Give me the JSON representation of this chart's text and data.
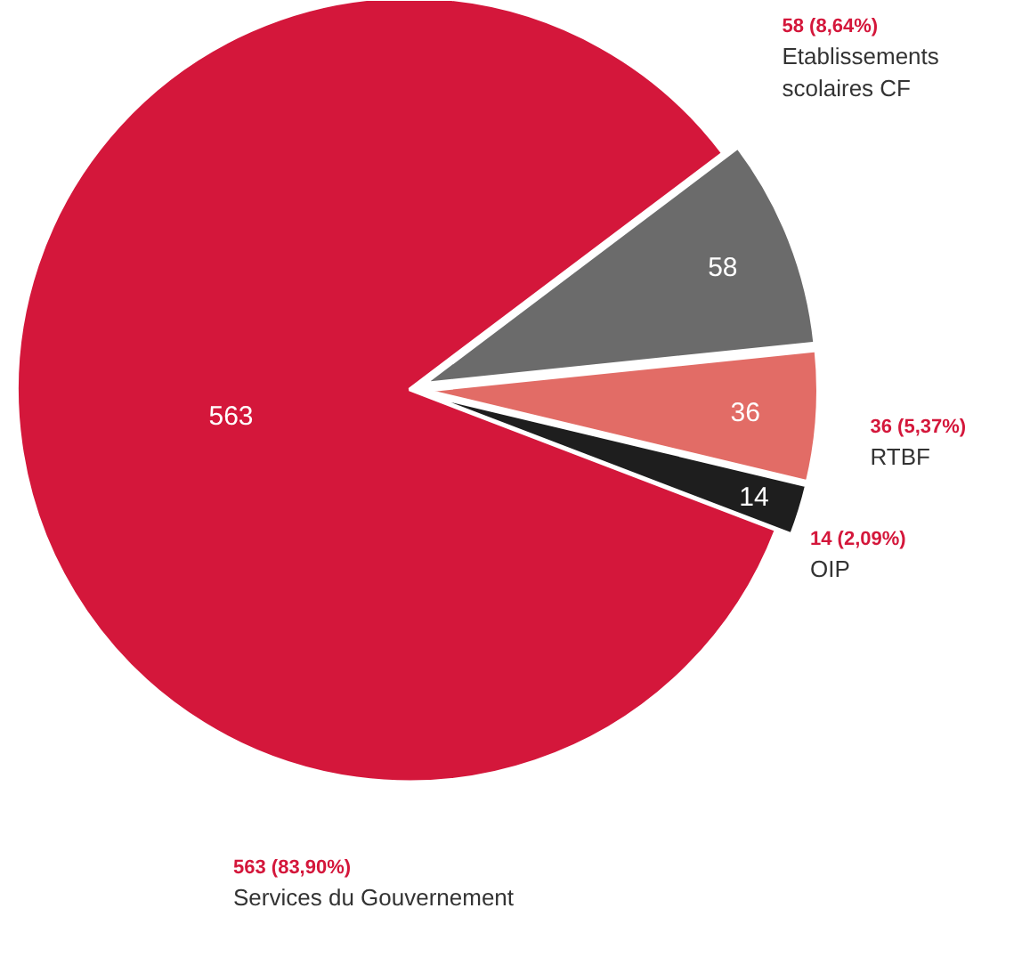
{
  "chart_data": {
    "type": "pie",
    "categories": [
      "Etablissements scolaires CF",
      "RTBF",
      "OIP",
      "Services du Gouvernement"
    ],
    "values": [
      58,
      36,
      14,
      563
    ],
    "colors": [
      "#6b6b6b",
      "#e26c66",
      "#1e1e1e",
      "#d4173b"
    ],
    "value_labels": [
      "58",
      "36",
      "14",
      "563"
    ],
    "annotations": [
      "58 (8,64%)",
      "36 (5,37%)",
      "14 (2,09%)",
      "563 (83,90%)"
    ]
  }
}
